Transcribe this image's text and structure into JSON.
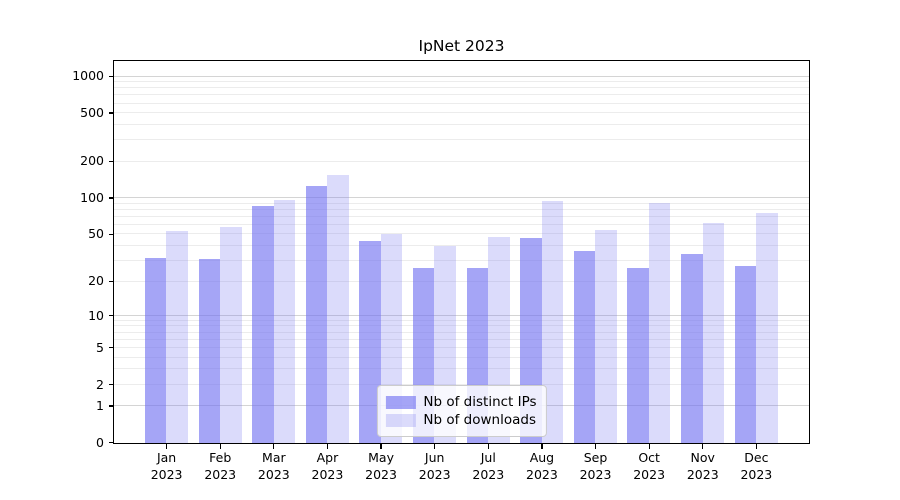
{
  "title": "IpNet 2023",
  "chart_data": {
    "type": "bar",
    "title": "IpNet 2023",
    "categories": [
      "Jan 2023",
      "Feb 2023",
      "Mar 2023",
      "Apr 2023",
      "May 2023",
      "Jun 2023",
      "Jul 2023",
      "Aug 2023",
      "Sep 2023",
      "Oct 2023",
      "Nov 2023",
      "Dec 2023"
    ],
    "series": [
      {
        "name": "Nb of distinct IPs",
        "color_fill": "rgba(110,110,240,0.62)",
        "color_hex_on_white": "#a5a5f5",
        "values": [
          32,
          31,
          87,
          125,
          44,
          26,
          26,
          47,
          36,
          26,
          34,
          27
        ]
      },
      {
        "name": "Nb of downloads",
        "color_fill": "rgba(110,110,240,0.25)",
        "color_hex_on_white": "#dadafb",
        "values": [
          53,
          58,
          97,
          155,
          50,
          40,
          48,
          94,
          54,
          92,
          62,
          75
        ]
      }
    ],
    "xlabel": "",
    "ylabel": "",
    "yscale": "log1p",
    "y_ticks": [
      0,
      1,
      2,
      5,
      10,
      20,
      50,
      100,
      200,
      500,
      1000
    ],
    "ylim": [
      0,
      1330
    ],
    "grid": true,
    "grid_major_color": "#d4d4d4",
    "grid_minor_color": "#ececec",
    "legend_position": "lower center"
  }
}
